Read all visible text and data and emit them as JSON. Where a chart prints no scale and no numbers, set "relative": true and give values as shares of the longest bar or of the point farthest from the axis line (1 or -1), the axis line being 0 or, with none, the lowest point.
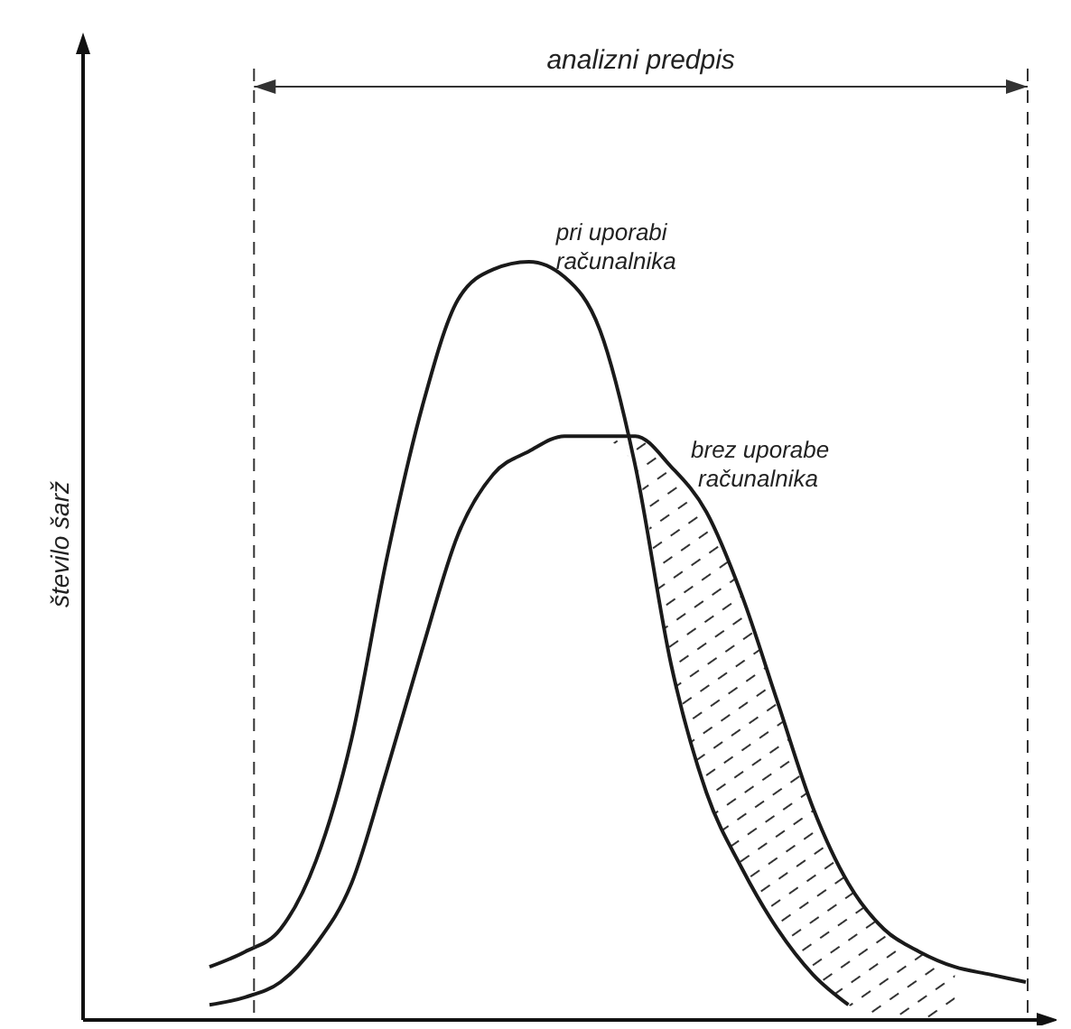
{
  "chart_data": {
    "type": "line",
    "relative": true,
    "ylabel": "število šarž",
    "annotations": [
      "analizni predpis"
    ],
    "legend": false,
    "marker": "none",
    "line_style": "solid",
    "categories": [
      null,
      null,
      null,
      null,
      null,
      null,
      null,
      null,
      null,
      null,
      null,
      null,
      null,
      null,
      null,
      null,
      null,
      null,
      null,
      null,
      null,
      null,
      null,
      null
    ],
    "series": [
      {
        "name": "pri uporabi računalnika",
        "color": "#1a1a1a",
        "values": [
          0.07,
          0.09,
          0.12,
          0.21,
          0.37,
          0.61,
          0.81,
          0.95,
          0.99,
          1.0,
          0.98,
          0.91,
          0.73,
          0.47,
          0.3,
          0.2,
          0.12,
          0.06,
          0.02,
          null,
          null,
          null,
          null,
          null
        ]
      },
      {
        "name": "brez uporabe računalnika",
        "color": "#1a1a1a",
        "values": [
          0.02,
          0.03,
          0.05,
          0.1,
          0.18,
          0.33,
          0.49,
          0.64,
          0.72,
          0.75,
          0.77,
          0.77,
          0.77,
          0.73,
          0.67,
          0.56,
          0.42,
          0.28,
          0.18,
          0.12,
          0.09,
          0.07,
          0.06,
          0.05
        ]
      }
    ]
  }
}
